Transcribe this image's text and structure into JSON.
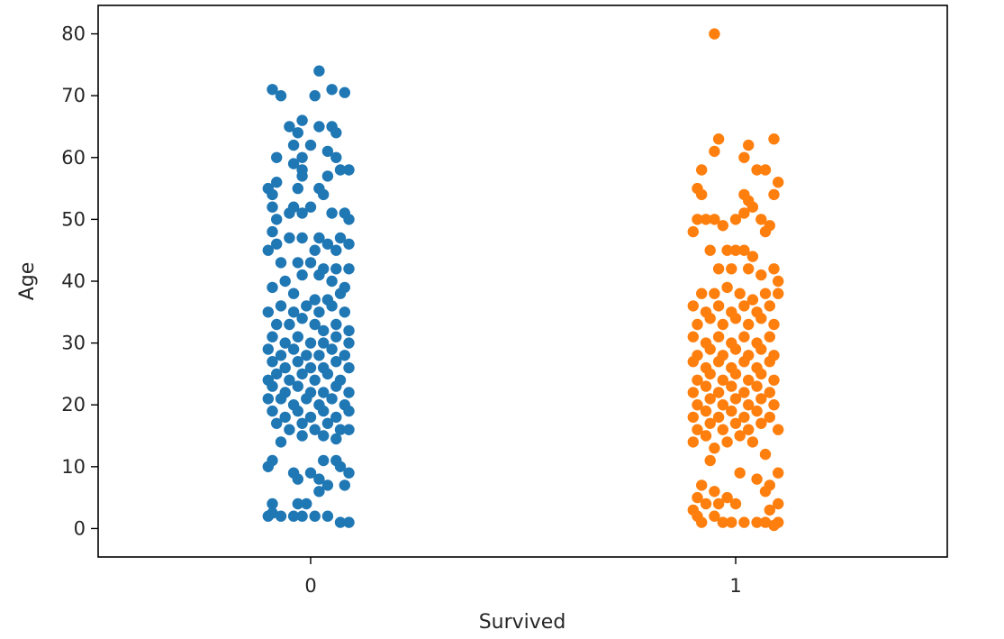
{
  "chart_data": {
    "type": "scatter",
    "title": "",
    "xlabel": "Survived",
    "ylabel": "Age",
    "categories": [
      "0",
      "1"
    ],
    "ylim": [
      -4.6,
      84.6
    ],
    "yticks": [
      0,
      10,
      20,
      30,
      40,
      50,
      60,
      70,
      80
    ],
    "grid": false,
    "legend": "none",
    "series": [
      {
        "category": "0",
        "color": "#1f77b4",
        "points": [
          [
            -0.09,
            71
          ],
          [
            -0.07,
            70
          ],
          [
            0.02,
            74
          ],
          [
            0.01,
            70
          ],
          [
            0.05,
            71
          ],
          [
            0.08,
            70.5
          ],
          [
            -0.05,
            65
          ],
          [
            -0.02,
            66
          ],
          [
            0.02,
            65
          ],
          [
            0.05,
            65
          ],
          [
            0.06,
            64
          ],
          [
            -0.03,
            64
          ],
          [
            -0.04,
            62
          ],
          [
            0,
            62
          ],
          [
            -0.02,
            60
          ],
          [
            0.04,
            61
          ],
          [
            0.06,
            60
          ],
          [
            -0.08,
            60
          ],
          [
            0.09,
            58
          ],
          [
            0.07,
            58
          ],
          [
            -0.04,
            59
          ],
          [
            -0.02,
            58
          ],
          [
            -0.1,
            55
          ],
          [
            -0.08,
            56
          ],
          [
            -0.09,
            54
          ],
          [
            -0.03,
            55
          ],
          [
            0.02,
            55
          ],
          [
            0.03,
            54
          ],
          [
            -0.02,
            57
          ],
          [
            0.04,
            57
          ],
          [
            -0.09,
            52
          ],
          [
            -0.04,
            52
          ],
          [
            0,
            52
          ],
          [
            -0.08,
            50
          ],
          [
            -0.05,
            51
          ],
          [
            -0.02,
            51
          ],
          [
            0.05,
            51
          ],
          [
            0.08,
            51
          ],
          [
            0.09,
            50
          ],
          [
            -0.09,
            48
          ],
          [
            -0.05,
            47
          ],
          [
            -0.02,
            47
          ],
          [
            0.02,
            47
          ],
          [
            0.04,
            46
          ],
          [
            0.07,
            47
          ],
          [
            0.09,
            46
          ],
          [
            -0.08,
            46
          ],
          [
            0.06,
            45
          ],
          [
            0.01,
            45
          ],
          [
            -0.1,
            45
          ],
          [
            -0.07,
            43
          ],
          [
            -0.03,
            43
          ],
          [
            0,
            43
          ],
          [
            0.03,
            42
          ],
          [
            0.06,
            42
          ],
          [
            0.09,
            42
          ],
          [
            -0.06,
            40
          ],
          [
            -0.02,
            41
          ],
          [
            0.02,
            41
          ],
          [
            0.05,
            40
          ],
          [
            0.08,
            39
          ],
          [
            -0.09,
            39
          ],
          [
            -0.04,
            38
          ],
          [
            0.01,
            37
          ],
          [
            0.04,
            37
          ],
          [
            0.07,
            38
          ],
          [
            -0.1,
            35
          ],
          [
            -0.07,
            36
          ],
          [
            -0.04,
            35
          ],
          [
            -0.01,
            36
          ],
          [
            0.02,
            35
          ],
          [
            0.05,
            36
          ],
          [
            0.08,
            35
          ],
          [
            -0.08,
            33
          ],
          [
            -0.05,
            33
          ],
          [
            -0.02,
            34
          ],
          [
            0.01,
            33
          ],
          [
            0.03,
            32
          ],
          [
            0.06,
            33
          ],
          [
            0.09,
            32
          ],
          [
            -0.09,
            31
          ],
          [
            -0.06,
            30
          ],
          [
            -0.03,
            31
          ],
          [
            0,
            30
          ],
          [
            0.03,
            30
          ],
          [
            0.06,
            31
          ],
          [
            0.09,
            30
          ],
          [
            -0.1,
            29
          ],
          [
            -0.07,
            28
          ],
          [
            -0.04,
            29
          ],
          [
            -0.01,
            28
          ],
          [
            0.02,
            28
          ],
          [
            0.05,
            29
          ],
          [
            0.08,
            28
          ],
          [
            -0.09,
            27
          ],
          [
            -0.06,
            26
          ],
          [
            -0.03,
            27
          ],
          [
            0,
            26
          ],
          [
            0.03,
            26
          ],
          [
            0.06,
            27
          ],
          [
            0.09,
            26
          ],
          [
            -0.08,
            25
          ],
          [
            -0.05,
            24
          ],
          [
            -0.02,
            25
          ],
          [
            0.01,
            24
          ],
          [
            0.04,
            25
          ],
          [
            0.07,
            24
          ],
          [
            -0.1,
            24
          ],
          [
            -0.09,
            23
          ],
          [
            -0.06,
            22
          ],
          [
            -0.03,
            23
          ],
          [
            0,
            22
          ],
          [
            0.03,
            22
          ],
          [
            0.06,
            23
          ],
          [
            0.09,
            22
          ],
          [
            -0.1,
            21
          ],
          [
            -0.07,
            21
          ],
          [
            -0.04,
            20
          ],
          [
            -0.01,
            21
          ],
          [
            0.02,
            20
          ],
          [
            0.05,
            21
          ],
          [
            0.08,
            20
          ],
          [
            -0.09,
            19
          ],
          [
            -0.06,
            18
          ],
          [
            -0.03,
            19
          ],
          [
            0,
            18
          ],
          [
            0.03,
            19
          ],
          [
            0.06,
            18
          ],
          [
            0.09,
            19
          ],
          [
            -0.08,
            17
          ],
          [
            -0.05,
            16
          ],
          [
            -0.02,
            17
          ],
          [
            0.01,
            16
          ],
          [
            0.04,
            17
          ],
          [
            0.07,
            16
          ],
          [
            0.09,
            16
          ],
          [
            -0.07,
            14
          ],
          [
            0.06,
            14.5
          ],
          [
            -0.02,
            15
          ],
          [
            0.03,
            15
          ],
          [
            -0.1,
            10
          ],
          [
            -0.09,
            11
          ],
          [
            -0.04,
            9
          ],
          [
            -0.03,
            8
          ],
          [
            0,
            9
          ],
          [
            0.02,
            8
          ],
          [
            0.03,
            11
          ],
          [
            0.06,
            11
          ],
          [
            0.07,
            10
          ],
          [
            0.09,
            9
          ],
          [
            0.02,
            6
          ],
          [
            0.04,
            7
          ],
          [
            0.08,
            7
          ],
          [
            -0.09,
            4
          ],
          [
            -0.03,
            4
          ],
          [
            -0.01,
            4
          ],
          [
            -0.1,
            2
          ],
          [
            -0.09,
            2.5
          ],
          [
            -0.07,
            2
          ],
          [
            -0.04,
            2
          ],
          [
            -0.02,
            2
          ],
          [
            0.01,
            2
          ],
          [
            0.04,
            2
          ],
          [
            0.07,
            1
          ],
          [
            0.09,
            1
          ]
        ]
      },
      {
        "category": "1",
        "color": "#ff7f0e",
        "points": [
          [
            -0.05,
            80
          ],
          [
            -0.04,
            63
          ],
          [
            0.03,
            62
          ],
          [
            0.09,
            63
          ],
          [
            -0.05,
            61
          ],
          [
            0.02,
            60
          ],
          [
            -0.08,
            58
          ],
          [
            0.07,
            58
          ],
          [
            0.05,
            58
          ],
          [
            -0.09,
            55
          ],
          [
            -0.08,
            54
          ],
          [
            0.09,
            54
          ],
          [
            0.1,
            56
          ],
          [
            0.02,
            54
          ],
          [
            0.03,
            53
          ],
          [
            -0.09,
            50
          ],
          [
            -0.07,
            50
          ],
          [
            -0.05,
            50
          ],
          [
            -0.03,
            49
          ],
          [
            -0.1,
            48
          ],
          [
            0,
            50
          ],
          [
            0.02,
            51
          ],
          [
            0.04,
            52
          ],
          [
            0.06,
            50
          ],
          [
            0.08,
            49
          ],
          [
            0.07,
            48
          ],
          [
            -0.06,
            45
          ],
          [
            -0.02,
            45
          ],
          [
            0,
            45
          ],
          [
            0.02,
            45
          ],
          [
            0.04,
            44
          ],
          [
            -0.04,
            42
          ],
          [
            -0.01,
            42
          ],
          [
            0.03,
            42
          ],
          [
            0.06,
            41
          ],
          [
            0.09,
            42
          ],
          [
            0.1,
            40
          ],
          [
            -0.08,
            38
          ],
          [
            -0.05,
            38
          ],
          [
            -0.02,
            39
          ],
          [
            0.01,
            38
          ],
          [
            0.04,
            37
          ],
          [
            0.07,
            38
          ],
          [
            0.1,
            38
          ],
          [
            -0.1,
            36
          ],
          [
            -0.07,
            35
          ],
          [
            -0.04,
            36
          ],
          [
            -0.01,
            35
          ],
          [
            0.02,
            36
          ],
          [
            0.05,
            35
          ],
          [
            0.08,
            36
          ],
          [
            -0.09,
            33
          ],
          [
            -0.06,
            34
          ],
          [
            -0.03,
            33
          ],
          [
            0,
            34
          ],
          [
            0.03,
            33
          ],
          [
            0.06,
            34
          ],
          [
            0.09,
            33
          ],
          [
            -0.1,
            31
          ],
          [
            -0.07,
            30
          ],
          [
            -0.04,
            31
          ],
          [
            -0.01,
            30
          ],
          [
            0.02,
            31
          ],
          [
            0.05,
            30
          ],
          [
            0.08,
            31
          ],
          [
            -0.09,
            28
          ],
          [
            -0.06,
            29
          ],
          [
            -0.03,
            28
          ],
          [
            0,
            29
          ],
          [
            0.03,
            28
          ],
          [
            0.06,
            29
          ],
          [
            0.09,
            28
          ],
          [
            -0.1,
            27
          ],
          [
            -0.07,
            26
          ],
          [
            -0.04,
            27
          ],
          [
            -0.01,
            26
          ],
          [
            0.02,
            27
          ],
          [
            0.05,
            26
          ],
          [
            0.08,
            27
          ],
          [
            -0.09,
            24
          ],
          [
            -0.06,
            25
          ],
          [
            -0.03,
            24
          ],
          [
            0,
            25
          ],
          [
            0.03,
            24
          ],
          [
            0.06,
            25
          ],
          [
            0.09,
            24
          ],
          [
            -0.1,
            22
          ],
          [
            -0.07,
            23
          ],
          [
            -0.04,
            22
          ],
          [
            -0.01,
            23
          ],
          [
            0.02,
            22
          ],
          [
            0.05,
            23
          ],
          [
            0.08,
            22
          ],
          [
            -0.09,
            20
          ],
          [
            -0.06,
            21
          ],
          [
            -0.03,
            20
          ],
          [
            0,
            21
          ],
          [
            0.03,
            20
          ],
          [
            0.06,
            21
          ],
          [
            0.09,
            20
          ],
          [
            -0.1,
            18
          ],
          [
            -0.07,
            19
          ],
          [
            -0.04,
            18
          ],
          [
            -0.01,
            19
          ],
          [
            0.02,
            18
          ],
          [
            0.05,
            19
          ],
          [
            0.08,
            18
          ],
          [
            -0.09,
            16
          ],
          [
            -0.06,
            17
          ],
          [
            -0.03,
            16
          ],
          [
            0,
            17
          ],
          [
            0.03,
            16
          ],
          [
            0.06,
            17
          ],
          [
            0.1,
            16
          ],
          [
            -0.1,
            14
          ],
          [
            -0.07,
            15
          ],
          [
            -0.05,
            13
          ],
          [
            -0.02,
            14
          ],
          [
            0.01,
            15
          ],
          [
            0.04,
            14
          ],
          [
            -0.06,
            11
          ],
          [
            0.07,
            12
          ],
          [
            0.01,
            9
          ],
          [
            0.05,
            8
          ],
          [
            0.08,
            7
          ],
          [
            0.1,
            9
          ],
          [
            0.07,
            6
          ],
          [
            -0.08,
            7
          ],
          [
            -0.05,
            6
          ],
          [
            -0.09,
            5
          ],
          [
            -0.07,
            4
          ],
          [
            -0.04,
            4
          ],
          [
            -0.02,
            5
          ],
          [
            0,
            4
          ],
          [
            -0.1,
            3
          ],
          [
            -0.09,
            2
          ],
          [
            -0.08,
            1
          ],
          [
            -0.05,
            2
          ],
          [
            -0.03,
            1
          ],
          [
            -0.01,
            1
          ],
          [
            0.02,
            1
          ],
          [
            0.05,
            1
          ],
          [
            0.07,
            1
          ],
          [
            0.09,
            0.5
          ],
          [
            0.1,
            1
          ],
          [
            0.1,
            4
          ],
          [
            0.08,
            3
          ]
        ]
      }
    ]
  }
}
